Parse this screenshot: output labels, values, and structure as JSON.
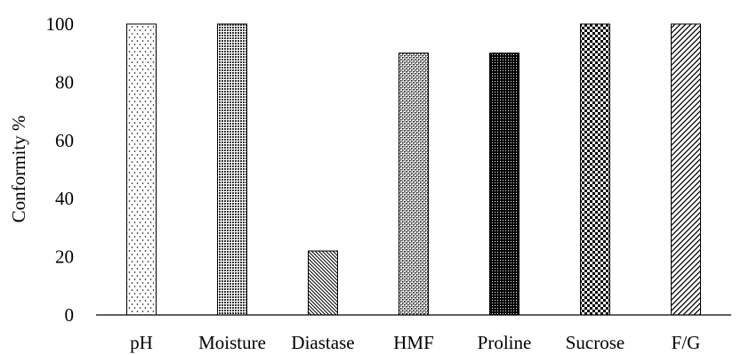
{
  "chart_data": {
    "type": "bar",
    "title": "",
    "xlabel": "",
    "ylabel": "Conformity %",
    "ylim": [
      0,
      100
    ],
    "yticks": [
      0,
      20,
      40,
      60,
      80,
      100
    ],
    "grid": false,
    "categories": [
      "pH",
      "Moisture",
      "Diastase",
      "HMF",
      "Proline",
      "Sucrose",
      "F/G"
    ],
    "values": [
      100,
      100,
      22,
      90,
      90,
      100,
      100
    ],
    "patterns": [
      "sparse-dots",
      "fine-grid",
      "diagonal-dense",
      "crosshatch-dots",
      "dense-dots",
      "checkerboard",
      "diagonal-wide"
    ],
    "bar_color": "#000000",
    "background": "#ffffff"
  }
}
